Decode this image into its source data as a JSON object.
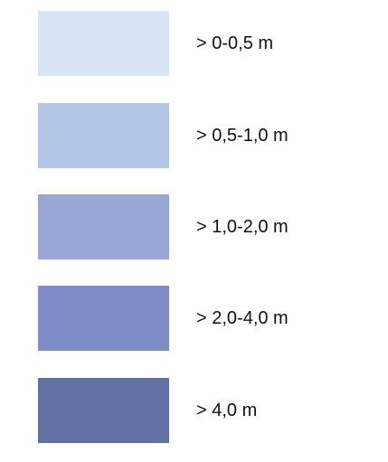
{
  "legend": {
    "items": [
      {
        "label": "> 0-0,5 m",
        "color": "#d6e4f5"
      },
      {
        "label": "> 0,5-1,0 m",
        "color": "#b3c8e7"
      },
      {
        "label": "> 1,0-2,0 m",
        "color": "#98a9d8"
      },
      {
        "label": "> 2,0-4,0 m",
        "color": "#7e8cc6"
      },
      {
        "label": "> 4,0 m",
        "color": "#6171a3"
      }
    ]
  }
}
